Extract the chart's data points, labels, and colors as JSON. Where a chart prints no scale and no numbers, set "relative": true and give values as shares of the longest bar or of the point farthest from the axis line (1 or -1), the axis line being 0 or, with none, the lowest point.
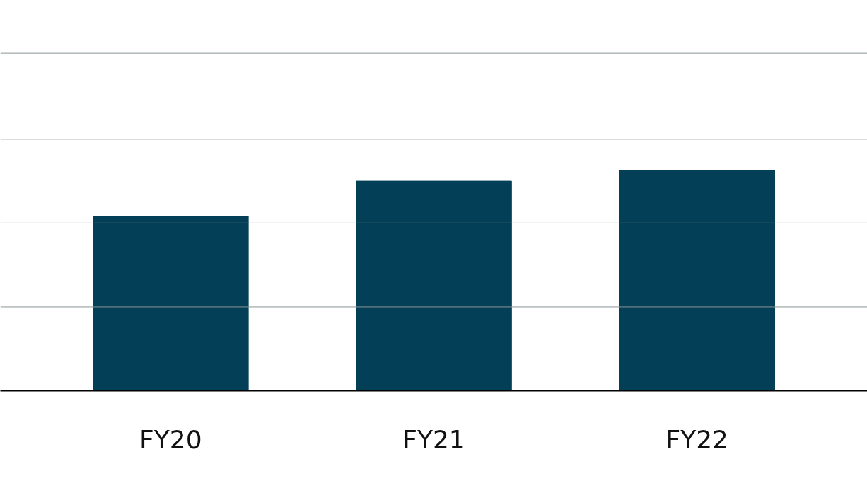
{
  "chart_data": {
    "type": "bar",
    "relative": true,
    "categories": [
      "FY20",
      "FY21",
      "FY22"
    ],
    "values": [
      0.79,
      0.95,
      1
    ],
    "color": "#033f56",
    "ref_lines": [
      {
        "axis": "y",
        "value": 0.38,
        "color": "#8a9497"
      },
      {
        "axis": "y",
        "value": 0.76,
        "color": "#8a9497"
      },
      {
        "axis": "y",
        "value": 1.14,
        "color": "#8a9497"
      },
      {
        "axis": "y",
        "value": 1.53,
        "color": "#8a9497"
      }
    ]
  }
}
